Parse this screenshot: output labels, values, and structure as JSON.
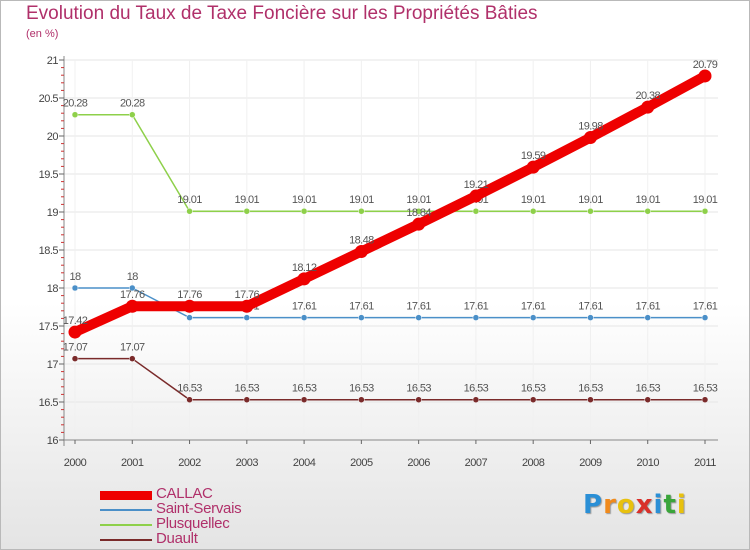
{
  "title": "Evolution du Taux de Taxe Foncière sur les Propriétés Bâties",
  "subtitle": "(en %)",
  "logo": {
    "text": "Proxiti",
    "letters": [
      "P",
      "r",
      "o",
      "x",
      "i",
      "t",
      "i"
    ],
    "colors": [
      "#2a8fd6",
      "#f08a1c",
      "#e8c10e",
      "#d9302a",
      "#2a8fd6",
      "#3aa53a",
      "#e8c10e"
    ]
  },
  "chart_data": {
    "type": "line",
    "title": "Evolution du Taux de Taxe Foncière sur les Propriétés Bâties",
    "ylabel": "(en %)",
    "xlabel": "",
    "ylim": [
      16,
      21
    ],
    "y_ticks": [
      "16",
      "16.5",
      "17",
      "17.5",
      "18",
      "18.5",
      "19",
      "19.5",
      "20",
      "20.5",
      "21"
    ],
    "categories": [
      "2000",
      "2001",
      "2002",
      "2003",
      "2004",
      "2005",
      "2006",
      "2007",
      "2008",
      "2009",
      "2010",
      "2011"
    ],
    "legend_position": "bottom-left",
    "series": [
      {
        "name": "CALLAC",
        "color": "#ee0000",
        "emphasis": true,
        "values": [
          17.42,
          17.76,
          17.76,
          17.76,
          18.12,
          18.48,
          18.84,
          19.21,
          19.59,
          19.98,
          20.38,
          20.79
        ],
        "labels": [
          "17.42",
          "17.76",
          "17.76",
          "17.76",
          "18.12",
          "18.48",
          "18.84",
          "19.21",
          "19.59",
          "19.98",
          "20.38",
          "20.79"
        ]
      },
      {
        "name": "Saint-Servais",
        "color": "#4a8fc8",
        "emphasis": false,
        "values": [
          18,
          18,
          17.61,
          17.61,
          17.61,
          17.61,
          17.61,
          17.61,
          17.61,
          17.61,
          17.61,
          17.61
        ],
        "labels": [
          "18",
          "18",
          "17.61",
          "17.61",
          "17.61",
          "17.61",
          "17.61",
          "17.61",
          "17.61",
          "17.61",
          "17.61",
          "17.61"
        ]
      },
      {
        "name": "Plusquellec",
        "color": "#8ed04a",
        "emphasis": false,
        "values": [
          20.28,
          20.28,
          19.01,
          19.01,
          19.01,
          19.01,
          19.01,
          19.01,
          19.01,
          19.01,
          19.01,
          19.01
        ],
        "labels": [
          "20.28",
          "20.28",
          "19.01",
          "19.01",
          "19.01",
          "19.01",
          "19.01",
          "19.01",
          "19.01",
          "19.01",
          "19.01",
          "19.01"
        ]
      },
      {
        "name": "Duault",
        "color": "#7a2a2a",
        "emphasis": false,
        "values": [
          17.07,
          17.07,
          16.53,
          16.53,
          16.53,
          16.53,
          16.53,
          16.53,
          16.53,
          16.53,
          16.53,
          16.53
        ],
        "labels": [
          "17.07",
          "17.07",
          "16.53",
          "16.53",
          "16.53",
          "16.53",
          "16.53",
          "16.53",
          "16.53",
          "16.53",
          "16.53",
          "16.53"
        ]
      }
    ]
  }
}
